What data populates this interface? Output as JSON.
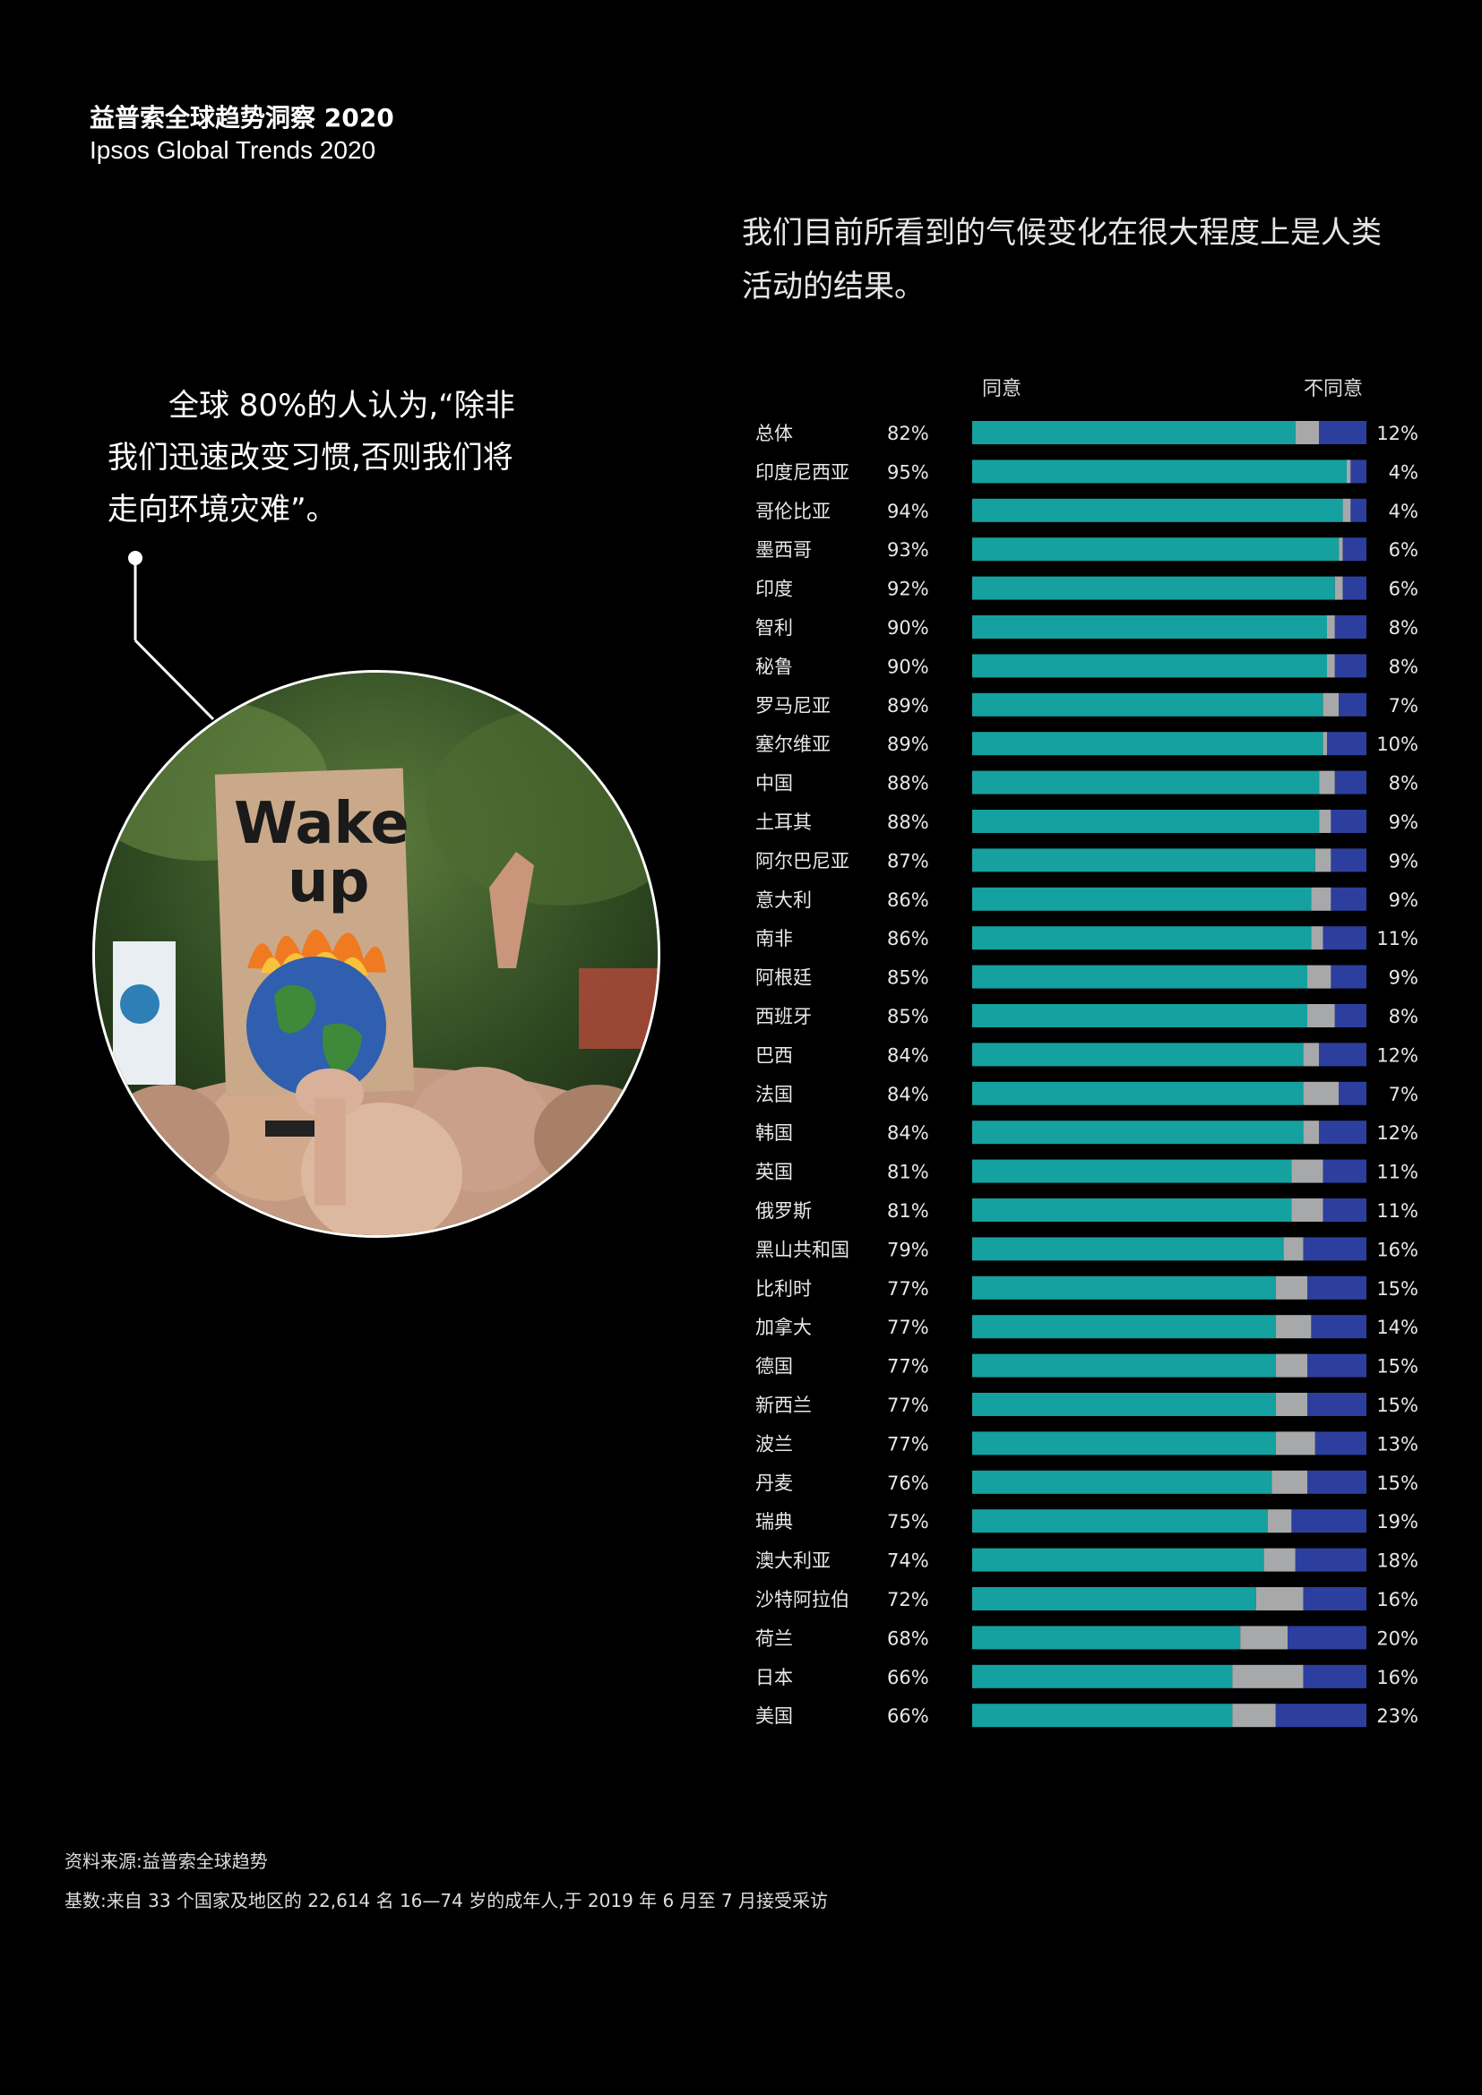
{
  "header": {
    "title_cn": "益普索全球趋势洞察 2020",
    "title_en": "Ipsos Global Trends 2020"
  },
  "quote": {
    "text": "全球 80%的人认为,“除非我们迅速改变习惯,否则我们将走向环境灾难”。"
  },
  "photo": {
    "sign_line1": "Wake",
    "sign_line2": "up"
  },
  "chart_data": {
    "type": "bar",
    "stacked": true,
    "orientation": "horizontal",
    "title": "我们目前所看到的气候变化在很大程度上是人类活动的结果。",
    "legend": {
      "agree": "同意",
      "disagree": "不同意"
    },
    "colors": {
      "agree": "#14a19f",
      "neutral": "#a7a8aa",
      "disagree": "#2d3f9e"
    },
    "categories": [
      "总体",
      "印度尼西亚",
      "哥伦比亚",
      "墨西哥",
      "印度",
      "智利",
      "秘鲁",
      "罗马尼亚",
      "塞尔维亚",
      "中国",
      "土耳其",
      "阿尔巴尼亚",
      "意大利",
      "南非",
      "阿根廷",
      "西班牙",
      "巴西",
      "法国",
      "韩国",
      "英国",
      "俄罗斯",
      "黑山共和国",
      "比利时",
      "加拿大",
      "德国",
      "新西兰",
      "波兰",
      "丹麦",
      "瑞典",
      "澳大利亚",
      "沙特阿拉伯",
      "荷兰",
      "日本",
      "美国"
    ],
    "agree": [
      82,
      95,
      94,
      93,
      92,
      90,
      90,
      89,
      89,
      88,
      88,
      87,
      86,
      86,
      85,
      85,
      84,
      84,
      84,
      81,
      81,
      79,
      77,
      77,
      77,
      77,
      77,
      76,
      75,
      74,
      72,
      68,
      66,
      66
    ],
    "disagree": [
      12,
      4,
      4,
      6,
      6,
      8,
      8,
      7,
      10,
      8,
      9,
      9,
      9,
      11,
      9,
      8,
      12,
      7,
      12,
      11,
      11,
      16,
      15,
      14,
      15,
      15,
      13,
      15,
      19,
      18,
      16,
      20,
      16,
      23
    ],
    "xlim": [
      0,
      100
    ]
  },
  "footer": {
    "source": "资料来源:益普索全球趋势",
    "base": "基数:来自 33 个国家及地区的 22,614 名 16—74 岁的成年人,于 2019 年 6 月至 7 月接受采访"
  }
}
